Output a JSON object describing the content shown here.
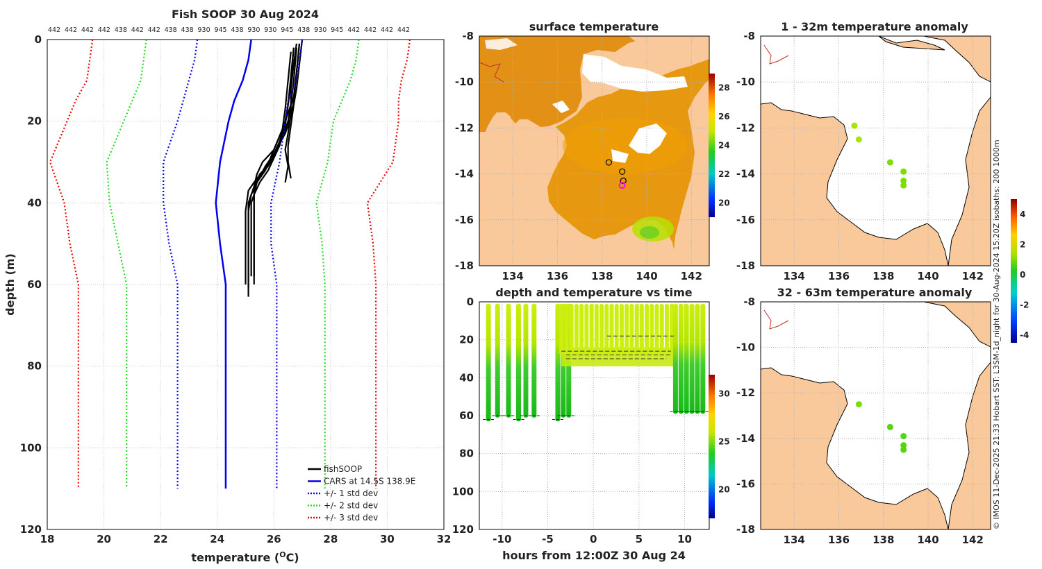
{
  "chart_data": [
    {
      "type": "line",
      "title": "Fish SOOP 30 Aug 2024",
      "xlabel": "temperature (",
      "xlabel_sup": "O",
      "xlabel_end": "C)",
      "ylabel": "depth (m)",
      "xlim": [
        18,
        32
      ],
      "ylim": [
        0,
        120
      ],
      "xticks": [
        18,
        20,
        22,
        24,
        26,
        28,
        30,
        32
      ],
      "yticks": [
        0,
        20,
        40,
        60,
        80,
        100,
        120
      ],
      "top_labels": [
        "442",
        "442",
        "442",
        "442",
        "438",
        "442",
        "442",
        "438",
        "438",
        "930",
        "945",
        "438",
        "930",
        "930",
        "945",
        "438",
        "930",
        "945",
        "442",
        "442",
        "442",
        "442"
      ],
      "series": [
        {
          "name": "fishSOOP",
          "color": "#000000",
          "style": "solid",
          "profiles": [
            {
              "x": [
                26.8,
                26.7,
                26.6,
                26.5,
                26.3,
                25.9,
                25.5,
                25.3,
                25.1,
                25.1,
                25.1
              ],
              "y": [
                2,
                10,
                16,
                20,
                24,
                30,
                33,
                36,
                40,
                55,
                63
              ]
            },
            {
              "x": [
                26.9,
                26.8,
                26.7,
                26.6,
                26.4,
                26.0,
                25.7,
                25.4,
                25.3,
                25.3,
                25.3
              ],
              "y": [
                1,
                8,
                15,
                19,
                23,
                28,
                31,
                35,
                38,
                52,
                60
              ]
            },
            {
              "x": [
                26.7,
                26.6,
                26.5,
                26.4,
                26.2,
                25.8,
                25.4,
                25.1,
                25.0,
                25.0
              ],
              "y": [
                2,
                9,
                16,
                20,
                25,
                31,
                34,
                37,
                42,
                60
              ]
            },
            {
              "x": [
                26.9,
                26.8,
                26.7,
                26.5,
                26.3,
                26.0,
                25.6,
                25.4,
                25.3,
                25.3
              ],
              "y": [
                1,
                8,
                14,
                18,
                22,
                27,
                30,
                33,
                36,
                58
              ]
            },
            {
              "x": [
                26.8,
                26.7,
                26.6,
                26.6,
                26.5,
                26.4,
                26.5,
                26.4
              ],
              "y": [
                1,
                6,
                12,
                18,
                23,
                27,
                31,
                35
              ]
            },
            {
              "x": [
                27.0,
                26.9,
                26.8,
                26.7,
                26.6,
                26.5,
                26.5,
                26.6
              ],
              "y": [
                0,
                6,
                12,
                16,
                21,
                26,
                30,
                34
              ]
            },
            {
              "x": [
                26.7,
                26.6,
                26.5,
                26.4,
                26.2,
                25.8,
                25.5,
                25.3,
                25.2,
                25.2
              ],
              "y": [
                2,
                10,
                16,
                21,
                26,
                32,
                35,
                38,
                40,
                58
              ]
            },
            {
              "x": [
                26.6,
                26.5,
                26.4,
                26.3,
                26.0,
                25.7,
                25.4,
                25.2,
                25.1,
                25.1
              ],
              "y": [
                3,
                10,
                17,
                22,
                27,
                32,
                35,
                38,
                42,
                61
              ]
            }
          ]
        },
        {
          "name": "CARS at 14.5S 138.9E",
          "color": "#0000ee",
          "style": "solid",
          "x": [
            25.2,
            25.1,
            24.9,
            24.6,
            24.4,
            24.1,
            23.95,
            24.1,
            24.3,
            24.3
          ],
          "y": [
            0,
            5,
            10,
            15,
            20,
            30,
            40,
            50,
            60,
            110
          ]
        },
        {
          "name": "+/- 1 std dev",
          "color": "#0000ee",
          "style": "dotted",
          "lower": {
            "x": [
              23.3,
              23.2,
              23.0,
              22.8,
              22.6,
              22.1,
              22.1,
              22.3,
              22.6,
              22.6
            ],
            "y": [
              0,
              5,
              10,
              15,
              20,
              30,
              40,
              50,
              60,
              110
            ]
          },
          "upper": {
            "x": [
              27.0,
              26.9,
              26.8,
              26.5,
              26.4,
              26.2,
              25.9,
              25.9,
              26.1,
              26.1
            ],
            "y": [
              0,
              5,
              10,
              15,
              20,
              30,
              40,
              50,
              60,
              110
            ]
          }
        },
        {
          "name": "+/- 2 std dev",
          "color": "#22dd22",
          "style": "dotted",
          "lower": {
            "x": [
              21.5,
              21.4,
              21.3,
              21.0,
              20.7,
              20.1,
              20.2,
              20.5,
              20.8,
              20.8
            ],
            "y": [
              0,
              5,
              10,
              15,
              20,
              30,
              40,
              50,
              60,
              110
            ]
          },
          "upper": {
            "x": [
              29.0,
              28.9,
              28.7,
              28.4,
              28.1,
              27.9,
              27.5,
              27.7,
              27.8,
              27.8
            ],
            "y": [
              0,
              5,
              10,
              15,
              20,
              30,
              40,
              50,
              60,
              110
            ]
          }
        },
        {
          "name": "+/- 3 std dev",
          "color": "#ee0000",
          "style": "dotted",
          "lower": {
            "x": [
              19.6,
              19.5,
              19.4,
              19.0,
              18.7,
              18.1,
              18.6,
              18.8,
              19.1,
              19.1
            ],
            "y": [
              0,
              5,
              10,
              15,
              20,
              30,
              40,
              50,
              60,
              110
            ]
          },
          "upper": {
            "x": [
              30.8,
              30.7,
              30.5,
              30.4,
              30.4,
              30.2,
              29.3,
              29.5,
              29.6,
              29.6
            ],
            "y": [
              0,
              5,
              10,
              15,
              20,
              30,
              40,
              50,
              60,
              110
            ]
          }
        }
      ]
    },
    {
      "type": "heatmap",
      "title": "surface temperature",
      "xticks": [
        134,
        136,
        138,
        140,
        142
      ],
      "yticks": [
        -8,
        -10,
        -12,
        -14,
        -16,
        -18
      ],
      "xlim": [
        132.5,
        142.8
      ],
      "ylim": [
        -18,
        -8
      ],
      "colorbar_ticks": [
        20,
        22,
        24,
        26,
        28
      ],
      "colorbar_range": [
        19,
        29
      ],
      "markers_black": [
        [
          138.3,
          -13.5
        ],
        [
          138.9,
          -13.9
        ],
        [
          138.95,
          -14.3
        ]
      ],
      "marker_magenta": [
        138.9,
        -14.5
      ]
    },
    {
      "type": "scatter",
      "title": "depth and temperature vs time",
      "xlabel": "hours from 12:00Z 30 Aug 24",
      "xticks": [
        -10,
        -5,
        0,
        5,
        10
      ],
      "yticks": [
        0,
        20,
        40,
        60,
        80,
        100,
        120
      ],
      "xlim": [
        -12.5,
        12.7
      ],
      "ylim": [
        0,
        120
      ],
      "colorbar_ticks": [
        20,
        25,
        30
      ],
      "colorbar_range": [
        17,
        32
      ],
      "casts_hours": [
        -11.5,
        -10.5,
        -9.3,
        -8.2,
        -7.4,
        -6.5,
        -3.9,
        -3.3,
        -2.7
      ],
      "dense_block_hours": [
        -3.5,
        8.9
      ],
      "late_casts_hours": [
        9.0,
        9.6,
        10.2,
        10.8,
        11.4,
        12.0
      ],
      "dashed_lines": [
        {
          "x": [
            -3.5,
            8.5
          ],
          "y": 26
        },
        {
          "x": [
            -3.0,
            8.5
          ],
          "y": 28
        },
        {
          "x": [
            -3.0,
            8.0
          ],
          "y": 30
        },
        {
          "x": [
            1.5,
            9.0
          ],
          "y": 18
        }
      ]
    },
    {
      "type": "scatter",
      "title": "1 - 32m temperature anomaly",
      "xticks": [
        134,
        136,
        138,
        140,
        142
      ],
      "yticks": [
        -8,
        -10,
        -12,
        -14,
        -16,
        -18
      ],
      "xlim": [
        132.5,
        142.8
      ],
      "ylim": [
        -18,
        -8
      ],
      "points": [
        [
          136.7,
          -11.9
        ],
        [
          136.9,
          -12.5
        ],
        [
          138.3,
          -13.5
        ],
        [
          138.9,
          -13.9
        ],
        [
          138.9,
          -14.3
        ],
        [
          138.9,
          -14.5
        ]
      ],
      "anomaly_values": [
        1.0,
        1.1,
        0.8,
        0.9,
        0.9,
        0.8
      ]
    },
    {
      "type": "scatter",
      "title": "32 - 63m temperature anomaly",
      "xticks": [
        134,
        136,
        138,
        140,
        142
      ],
      "yticks": [
        -8,
        -10,
        -12,
        -14,
        -16,
        -18
      ],
      "xlim": [
        132.5,
        142.8
      ],
      "ylim": [
        -18,
        -8
      ],
      "points": [
        [
          136.9,
          -12.5
        ],
        [
          138.3,
          -13.5
        ],
        [
          138.9,
          -13.9
        ],
        [
          138.9,
          -14.3
        ],
        [
          138.9,
          -14.5
        ]
      ],
      "anomaly_values": [
        0.8,
        0.6,
        0.5,
        0.5,
        0.5
      ],
      "colorbar_ticks": [
        4,
        2,
        0,
        -2,
        -4
      ],
      "colorbar_range": [
        -4.5,
        5
      ]
    }
  ],
  "side_text": "© IMOS 11-Dec-2025 21:33 Hobart SST: L3SM-1d_night for 30-Aug-2024 15:20Z isobaths: 200  1000m",
  "colors": {
    "land": "#f9c99b",
    "axis": "#000000",
    "grid": "#bbbbbb"
  }
}
